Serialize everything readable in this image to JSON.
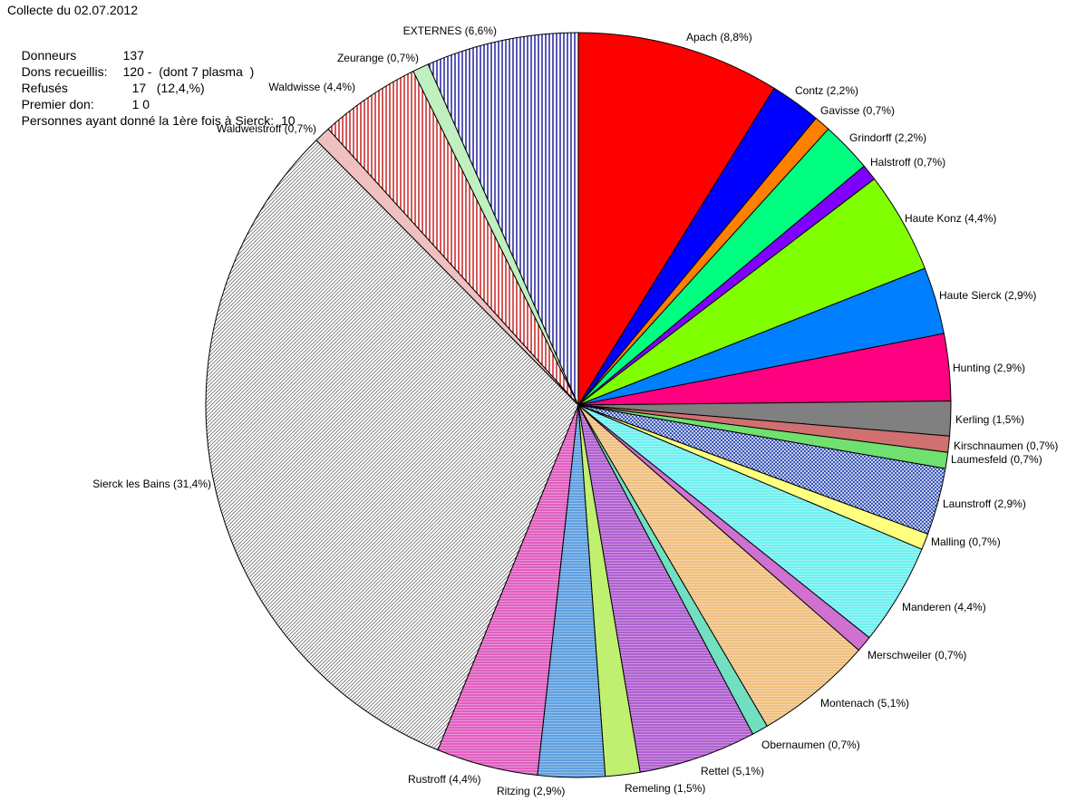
{
  "summary": {
    "title": "Collecte du 02.07.2012",
    "rows": [
      {
        "label": "Donneurs",
        "value": "137"
      },
      {
        "label": "Dons recueillis:",
        "value": "120 -  (dont 7 plasma  )"
      },
      {
        "label": "Refusés",
        "value": "17   (12,4,%)"
      },
      {
        "label": "Premier don:",
        "value": "1 0"
      },
      {
        "label": "Personnes ayant donné la 1ère fois à Sierck:",
        "value": "10"
      }
    ]
  },
  "chart_data": {
    "type": "pie",
    "title": "",
    "start_angle_deg": 0,
    "direction": "clockwise",
    "slices": [
      {
        "name": "Apach",
        "label": "Apach (8,8%)",
        "value": 8.8,
        "color": "#ff0000",
        "hatch": ""
      },
      {
        "name": "Contz",
        "label": "Contz (2,2%)",
        "value": 2.2,
        "color": "#0000ff",
        "hatch": ""
      },
      {
        "name": "Gavisse",
        "label": "Gavisse (0,7%)",
        "value": 0.7,
        "color": "#ff8000",
        "hatch": ""
      },
      {
        "name": "Grindorff",
        "label": "Grindorff (2,2%)",
        "value": 2.2,
        "color": "#00ff80",
        "hatch": ""
      },
      {
        "name": "Halstroff",
        "label": "Halstroff (0,7%)",
        "value": 0.7,
        "color": "#8000ff",
        "hatch": ""
      },
      {
        "name": "Haute Konz",
        "label": "Haute Konz (4,4%)",
        "value": 4.4,
        "color": "#80ff00",
        "hatch": ""
      },
      {
        "name": "Haute Sierck",
        "label": "Haute Sierck (2,9%)",
        "value": 2.9,
        "color": "#0080ff",
        "hatch": ""
      },
      {
        "name": "Hunting",
        "label": "Hunting (2,9%)",
        "value": 2.9,
        "color": "#ff0080",
        "hatch": ""
      },
      {
        "name": "Kerling",
        "label": "Kerling (1,5%)",
        "value": 1.5,
        "color": "#808080",
        "hatch": ""
      },
      {
        "name": "Kirschnaumen",
        "label": "Kirschnaumen (0,7%)",
        "value": 0.7,
        "color": "#d07070",
        "hatch": ""
      },
      {
        "name": "Laumesfeld",
        "label": "Laumesfeld (0,7%)",
        "value": 0.7,
        "color": "#70e070",
        "hatch": ""
      },
      {
        "name": "Launstroff",
        "label": "Launstroff (2,9%)",
        "value": 2.9,
        "color": "#3050c0",
        "hatch": "cross"
      },
      {
        "name": "Malling",
        "label": "Malling (0,7%)",
        "value": 0.7,
        "color": "#ffff80",
        "hatch": ""
      },
      {
        "name": "Manderen",
        "label": "Manderen (4,4%)",
        "value": 4.4,
        "color": "#70f0f0",
        "hatch": "horizontal"
      },
      {
        "name": "Merschweiler",
        "label": "Merschweiler (0,7%)",
        "value": 0.7,
        "color": "#d070d0",
        "hatch": ""
      },
      {
        "name": "Montenach",
        "label": "Montenach (5,1%)",
        "value": 5.1,
        "color": "#f0c080",
        "hatch": "horizontal"
      },
      {
        "name": "Obernaumen",
        "label": "Obernaumen (0,7%)",
        "value": 0.7,
        "color": "#70e0c0",
        "hatch": ""
      },
      {
        "name": "Rettel",
        "label": "Rettel (5,1%)",
        "value": 5.1,
        "color": "#b060d0",
        "hatch": "horizontal"
      },
      {
        "name": "Remeling",
        "label": "Remeling (1,5%)",
        "value": 1.5,
        "color": "#c0f070",
        "hatch": ""
      },
      {
        "name": "Ritzing",
        "label": "Ritzing (2,9%)",
        "value": 2.9,
        "color": "#60a0e0",
        "hatch": "horizontal"
      },
      {
        "name": "Rustroff",
        "label": "Rustroff (4,4%)",
        "value": 4.4,
        "color": "#e060c0",
        "hatch": "horizontal"
      },
      {
        "name": "Sierck les Bains",
        "label": "Sierck les Bains (31,4%)",
        "value": 31.4,
        "color": "#d0d0d0",
        "hatch": "diagonal"
      },
      {
        "name": "Waldweistroff",
        "label": "Waldweistroff (0,7%)",
        "value": 0.7,
        "color": "#f0c0c0",
        "hatch": ""
      },
      {
        "name": "Waldwisse",
        "label": "Waldwisse (4,4%)",
        "value": 4.4,
        "color": "#c00000",
        "hatch": "vertical-red"
      },
      {
        "name": "Zeurange",
        "label": "Zeurange (0,7%)",
        "value": 0.7,
        "color": "#c0f0c0",
        "hatch": ""
      },
      {
        "name": "EXTERNES",
        "label": "EXTERNES (6,6%)",
        "value": 6.6,
        "color": "#000080",
        "hatch": "vertical-blue"
      }
    ]
  }
}
